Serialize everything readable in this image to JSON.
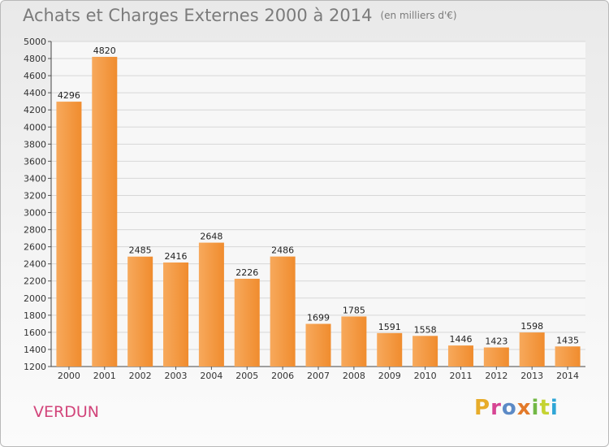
{
  "title": "Achats et Charges Externes 2000 à 2014",
  "unit": "(en milliers d'€)",
  "city": "VERDUN",
  "logo": "Proxiti",
  "logo_colors": [
    "#e7ac2a",
    "#d64593",
    "#5c8ac6",
    "#e37a2a",
    "#72b845",
    "#c5d331",
    "#2fa6d6"
  ],
  "colors": {
    "bar": "#f08c2e",
    "bar_light": "#f7a95c",
    "title": "#7b7b7b",
    "city": "#d2447a",
    "grid": "#d7d7d7"
  },
  "chart_data": {
    "type": "bar",
    "categories": [
      "2000",
      "2001",
      "2002",
      "2003",
      "2004",
      "2005",
      "2006",
      "2007",
      "2008",
      "2009",
      "2010",
      "2011",
      "2012",
      "2013",
      "2014"
    ],
    "values": [
      4296,
      4820,
      2485,
      2416,
      2648,
      2226,
      2486,
      1699,
      1785,
      1591,
      1558,
      1446,
      1423,
      1598,
      1435
    ],
    "ylim": [
      1200,
      5000
    ],
    "yticks": [
      1200,
      1400,
      1600,
      1800,
      2000,
      2200,
      2400,
      2600,
      2800,
      3000,
      3200,
      3400,
      3600,
      3800,
      4000,
      4200,
      4400,
      4600,
      4800,
      5000
    ],
    "grid": true,
    "title": "Achats et Charges Externes 2000 à 2014",
    "xlabel": "",
    "ylabel": ""
  }
}
